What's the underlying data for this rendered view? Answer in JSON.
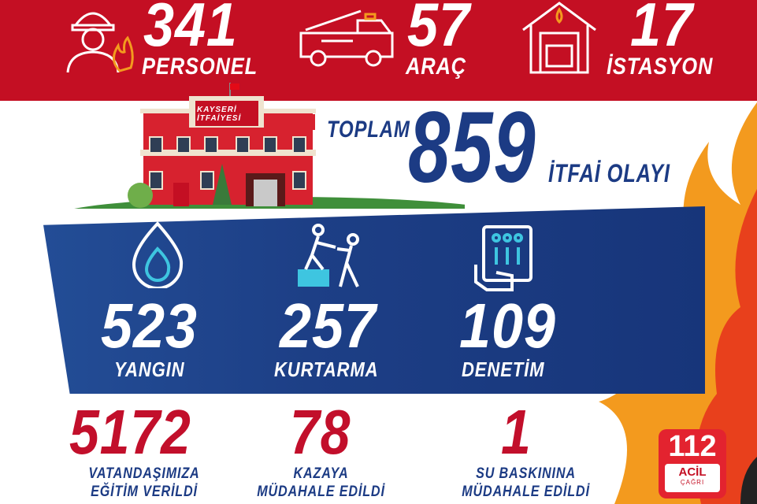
{
  "header": {
    "stats": [
      {
        "value": "341",
        "label": "PERSONEL",
        "icon": "firefighter-icon"
      },
      {
        "value": "57",
        "label": "ARAÇ",
        "icon": "fire-truck-icon"
      },
      {
        "value": "17",
        "label": "İSTASYON",
        "icon": "fire-station-icon"
      }
    ]
  },
  "building": {
    "sign_line1": "KAYSERİ",
    "sign_line2": "İTFAİYESİ"
  },
  "total": {
    "prefix": "TOPLAM",
    "value": "859",
    "suffix": "İTFAİ OLAYI"
  },
  "incidents": [
    {
      "value": "523",
      "label": "YANGIN",
      "icon": "flame-icon"
    },
    {
      "value": "257",
      "label": "KURTARMA",
      "icon": "rescue-icon"
    },
    {
      "value": "109",
      "label": "DENETİM",
      "icon": "inspection-tablet-icon"
    }
  ],
  "bottom": [
    {
      "value": "5172",
      "line1": "VATANDAŞIMIZA",
      "line2": "EĞİTİM VERİLDİ"
    },
    {
      "value": "78",
      "line1": "KAZAYA",
      "line2": "MÜDAHALE EDİLDİ"
    },
    {
      "value": "1",
      "line1": "SU BASKININA",
      "line2": "MÜDAHALE EDİLDİ"
    }
  ],
  "badge": {
    "number": "112",
    "line1": "ACİL",
    "line2": "ÇAĞRI"
  },
  "colors": {
    "red": "#c40f23",
    "blue": "#1c3b84",
    "orange": "#f39a1e"
  }
}
